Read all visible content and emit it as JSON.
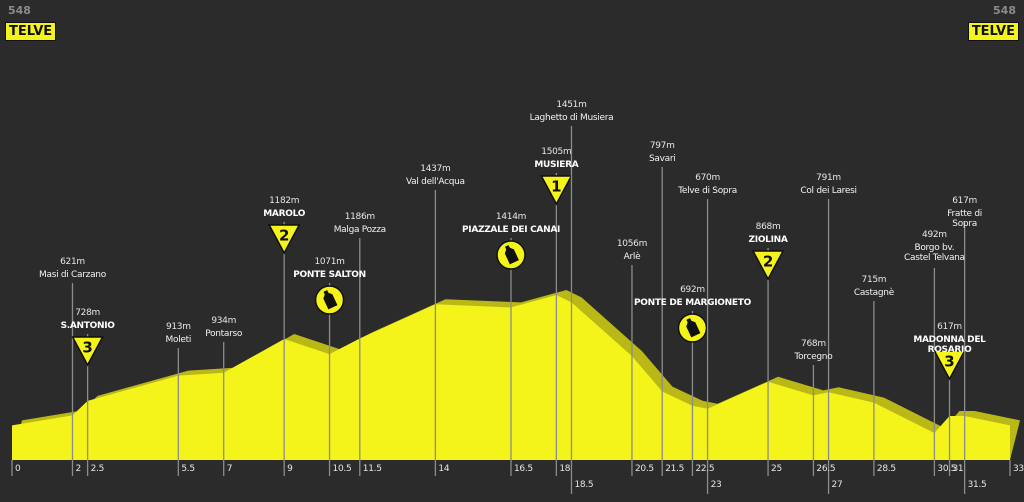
{
  "chart_data": {
    "type": "area",
    "color": "#f4f31a",
    "x": [
      0,
      2,
      2.5,
      5.5,
      7,
      9,
      10.5,
      11.5,
      14,
      16.5,
      18,
      18.5,
      20.5,
      21.5,
      22.5,
      23,
      25,
      26.5,
      27,
      28.5,
      30.5,
      31,
      31.5,
      33
    ],
    "values": [
      548,
      621,
      728,
      913,
      934,
      1182,
      1071,
      1186,
      1437,
      1414,
      1505,
      1451,
      1056,
      797,
      692,
      670,
      868,
      768,
      791,
      715,
      492,
      617,
      617,
      548
    ],
    "value_labels": [
      "548",
      "621m",
      "728m",
      "913m",
      "934m",
      "1182m",
      "1071m",
      "1186m",
      "1437m",
      "1414m",
      "1505m",
      "1451m",
      "1056m",
      "797m",
      "692m",
      "670m",
      "868m",
      "768m",
      "791m",
      "715m",
      "492m",
      "617m",
      "617m",
      "548"
    ],
    "names": [
      "TELVE",
      "Masi di Carzano",
      "S.ANTONIO",
      "Moleti",
      "Pontarso",
      "MAROLO",
      "PONTE SALTON",
      "Malga Pozza",
      "Val dell'Acqua",
      "PIAZZALE DEI CANAI",
      "MUSIERA",
      "Laghetto di Musiera",
      "Arlè",
      "Savari",
      "PONTE DE MARGIONETO",
      "Telve di Sopra",
      "ZIOLINA",
      "Torcegno",
      "Col dei Laresi",
      "Castagnè",
      "Borgo bv.\nCastel Telvana",
      "MADONNA DEL ROSARIO",
      "Fratte di Sopra",
      "TELVE"
    ],
    "climb_categories": [
      null,
      null,
      3,
      null,
      null,
      2,
      null,
      null,
      null,
      null,
      1,
      null,
      null,
      null,
      null,
      null,
      2,
      null,
      null,
      null,
      null,
      3,
      null,
      null
    ],
    "feed_zones": [
      false,
      false,
      false,
      false,
      false,
      false,
      true,
      false,
      false,
      true,
      false,
      false,
      false,
      false,
      true,
      false,
      false,
      false,
      false,
      false,
      false,
      false,
      false,
      false
    ]
  }
}
